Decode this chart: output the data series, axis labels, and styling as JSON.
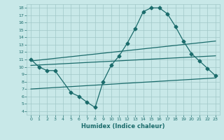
{
  "xlabel": "Humidex (Indice chaleur)",
  "xlim": [
    -0.5,
    23.5
  ],
  "ylim": [
    3.5,
    18.5
  ],
  "xticks": [
    0,
    1,
    2,
    3,
    4,
    5,
    6,
    7,
    8,
    9,
    10,
    11,
    12,
    13,
    14,
    15,
    16,
    17,
    18,
    19,
    20,
    21,
    22,
    23
  ],
  "yticks": [
    4,
    5,
    6,
    7,
    8,
    9,
    10,
    11,
    12,
    13,
    14,
    15,
    16,
    17,
    18
  ],
  "background_color": "#c8e8e8",
  "grid_color": "#a0c8c8",
  "line_color": "#1a6b6b",
  "line1_x": [
    0,
    1,
    2,
    3,
    5,
    6,
    7,
    8,
    9,
    10,
    11,
    12,
    13,
    14,
    15,
    16,
    17,
    18,
    19,
    20,
    21,
    22,
    23
  ],
  "line1_y": [
    11,
    10,
    9.5,
    9.5,
    6.5,
    6,
    5.2,
    4.5,
    8,
    10.2,
    11.5,
    13.2,
    15.2,
    17.5,
    18,
    18,
    17.2,
    15.5,
    13.5,
    11.8,
    10.8,
    9.8,
    8.8
  ],
  "line2_x": [
    0,
    23
  ],
  "line2_y": [
    10.8,
    13.5
  ],
  "line3_x": [
    0,
    23
  ],
  "line3_y": [
    10.2,
    11.5
  ],
  "line4_x": [
    0,
    23
  ],
  "line4_y": [
    7.0,
    8.5
  ],
  "markersize": 2.5,
  "linewidth": 0.9
}
